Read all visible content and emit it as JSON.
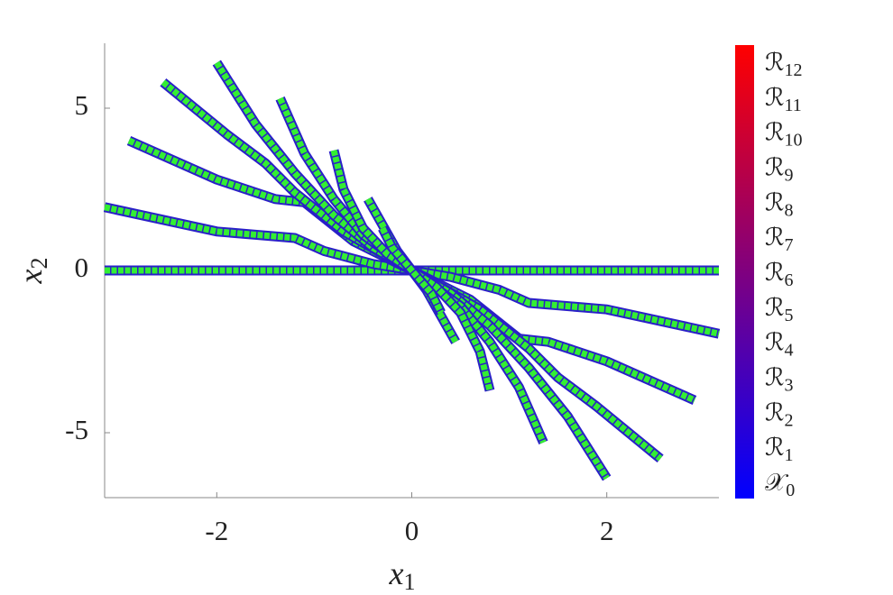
{
  "chart_data": {
    "type": "line",
    "xlabel": {
      "symbol": "x",
      "subscript": "1"
    },
    "ylabel": {
      "symbol": "x",
      "subscript": "2"
    },
    "xlim": [
      -3.15,
      3.15
    ],
    "ylim": [
      -7,
      7
    ],
    "xticks": [
      -2,
      0,
      2
    ],
    "yticks": [
      -5,
      0,
      5
    ],
    "color": "#33ee33",
    "edge_color": "#2a1fc8",
    "series": [
      {
        "x": [
          -3.15,
          3.15
        ],
        "values": [
          0,
          0
        ]
      },
      {
        "x": [
          -3.15,
          -2,
          -1.2,
          -0.9,
          -0.4,
          0,
          0.4,
          0.9,
          1.2,
          2,
          3.15
        ],
        "values": [
          1.95,
          1.2,
          1.0,
          0.6,
          0.2,
          0,
          -0.2,
          -0.6,
          -1.0,
          -1.2,
          -1.95
        ]
      },
      {
        "x": [
          -2.9,
          -2,
          -1.4,
          -1.1,
          -0.6,
          0,
          0.6,
          1.1,
          1.4,
          2,
          2.9
        ],
        "values": [
          4,
          2.8,
          2.2,
          2.1,
          0.9,
          0,
          -0.9,
          -2.1,
          -2.2,
          -2.8,
          -4
        ]
      },
      {
        "x": [
          -2.55,
          -1.9,
          -1.5,
          -1.2,
          -0.7,
          0,
          0.7,
          1.2,
          1.5,
          1.9,
          2.55
        ],
        "values": [
          5.8,
          4.2,
          3.3,
          2.4,
          1.2,
          0,
          -1.2,
          -2.4,
          -3.3,
          -4.2,
          -5.8
        ]
      },
      {
        "x": [
          -2,
          -1.6,
          -1.2,
          -0.8,
          -0.4,
          0,
          0.4,
          0.8,
          1.2,
          1.6,
          2
        ],
        "values": [
          6.4,
          4.5,
          3.0,
          1.7,
          0.7,
          0,
          -0.7,
          -1.7,
          -3.0,
          -4.5,
          -6.4
        ]
      },
      {
        "x": [
          -1.35,
          -1.1,
          -0.8,
          -0.5,
          0,
          0.5,
          0.8,
          1.1,
          1.35
        ],
        "values": [
          5.3,
          3.6,
          2.2,
          1.1,
          0,
          -1.1,
          -2.2,
          -3.6,
          -5.3
        ]
      },
      {
        "x": [
          -0.8,
          -0.7,
          -0.5,
          -0.25,
          0,
          0.25,
          0.5,
          0.7,
          0.8
        ],
        "values": [
          3.7,
          2.5,
          1.3,
          0.5,
          0,
          -0.5,
          -1.3,
          -2.5,
          -3.7
        ]
      },
      {
        "x": [
          -0.45,
          -0.3,
          -0.15,
          0,
          0.15,
          0.3,
          0.45
        ],
        "values": [
          2.2,
          1.4,
          0.6,
          0,
          -0.6,
          -1.4,
          -2.2
        ]
      },
      {
        "x": [
          -0.3,
          -0.2,
          0,
          0.2,
          0.3
        ],
        "values": [
          1.3,
          0.7,
          0,
          -0.7,
          -1.3
        ]
      }
    ],
    "colorbar": {
      "colors": [
        "#0000ff",
        "#ff0000"
      ],
      "labels": [
        {
          "symbol": "𝒳",
          "subscript": "0"
        },
        {
          "symbol": "ℛ",
          "subscript": "1"
        },
        {
          "symbol": "ℛ",
          "subscript": "2"
        },
        {
          "symbol": "ℛ",
          "subscript": "3"
        },
        {
          "symbol": "ℛ",
          "subscript": "4"
        },
        {
          "symbol": "ℛ",
          "subscript": "5"
        },
        {
          "symbol": "ℛ",
          "subscript": "6"
        },
        {
          "symbol": "ℛ",
          "subscript": "7"
        },
        {
          "symbol": "ℛ",
          "subscript": "8"
        },
        {
          "symbol": "ℛ",
          "subscript": "9"
        },
        {
          "symbol": "ℛ",
          "subscript": "10"
        },
        {
          "symbol": "ℛ",
          "subscript": "11"
        },
        {
          "symbol": "ℛ",
          "subscript": "12"
        }
      ]
    }
  }
}
